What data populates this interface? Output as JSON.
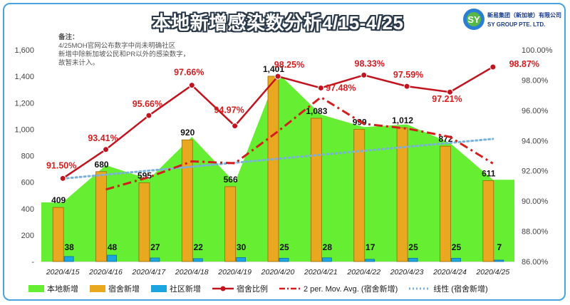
{
  "title": "本地新增感染数分析4/15-4/25",
  "note": {
    "title": "备注：",
    "lines": [
      "4/25MOH官网公布数字中尚未明确社区",
      "新增中除新加坡公民和PR以外的感染数字，",
      "故暂未计入。"
    ]
  },
  "logo": {
    "name_cn": "新易集团（新加坡）有限公司",
    "name_en": "SY GROUP PTE. LTD."
  },
  "chart_data": {
    "type": "bar",
    "categories": [
      "2020/4/15",
      "2020/4/16",
      "2020/4/17",
      "2020/4/18",
      "2020/4/19",
      "2020/4/20",
      "2020/4/21",
      "2020/4/22",
      "2020/4/23",
      "2020/4/24",
      "2020/4/25"
    ],
    "ylim": [
      0,
      1600
    ],
    "yticks": [
      "-",
      "200",
      "400",
      "600",
      "800",
      "1,000",
      "1,200",
      "1,400",
      "1,600"
    ],
    "y2lim": [
      0.86,
      1.0
    ],
    "y2ticks": [
      "86.00%",
      "88.00%",
      "90.00%",
      "92.00%",
      "94.00%",
      "96.00%",
      "98.00%",
      "100.00%"
    ],
    "series": [
      {
        "name": "本地新增",
        "kind": "area",
        "color": "#66ee33",
        "values": [
          447,
          728,
          622,
          942,
          596,
          1426,
          1111,
          1016,
          1037,
          897,
          618
        ]
      },
      {
        "name": "宿舍新增",
        "kind": "bar",
        "color": "#e8a820",
        "values": [
          409,
          680,
          595,
          920,
          566,
          1401,
          1083,
          999,
          1012,
          872,
          611
        ],
        "labels": [
          "409",
          "680",
          "595",
          "920",
          "566",
          "1,401",
          "1,083",
          "999",
          "1,012",
          "872",
          "611"
        ]
      },
      {
        "name": "社区新增",
        "kind": "bar",
        "color": "#1ca6e0",
        "values": [
          38,
          48,
          27,
          22,
          30,
          25,
          28,
          17,
          25,
          25,
          7
        ],
        "labels": [
          "38",
          "48",
          "27",
          "22",
          "30",
          "25",
          "28",
          "17",
          "25",
          "25",
          "7"
        ]
      },
      {
        "name": "宿舍比例",
        "kind": "line",
        "axis": "y2",
        "color": "#c0141e",
        "values": [
          0.915,
          0.9341,
          0.9566,
          0.9766,
          0.9497,
          0.9825,
          0.9748,
          0.9833,
          0.9759,
          0.9721,
          0.9887
        ],
        "labels": [
          "91.50%",
          "93.41%",
          "95.66%",
          "97.66%",
          "94.97%",
          "98.25%",
          "97.48%",
          "98.33%",
          "97.59%",
          "97.21%",
          "98.87%"
        ]
      },
      {
        "name": "2 per. Mov. Avg. (宿舍新增)",
        "kind": "dashdot",
        "color": "#d41e1e",
        "values": [
          null,
          544.5,
          637.5,
          757.5,
          743,
          983.5,
          1242,
          1041,
          1005.5,
          942,
          741.5
        ]
      },
      {
        "name": "线性 (宿舍新增)",
        "kind": "dotted",
        "color": "#7ab0dc",
        "values": [
          627,
          657,
          687,
          717,
          747,
          777,
          807,
          837,
          867,
          897,
          927
        ]
      }
    ]
  }
}
